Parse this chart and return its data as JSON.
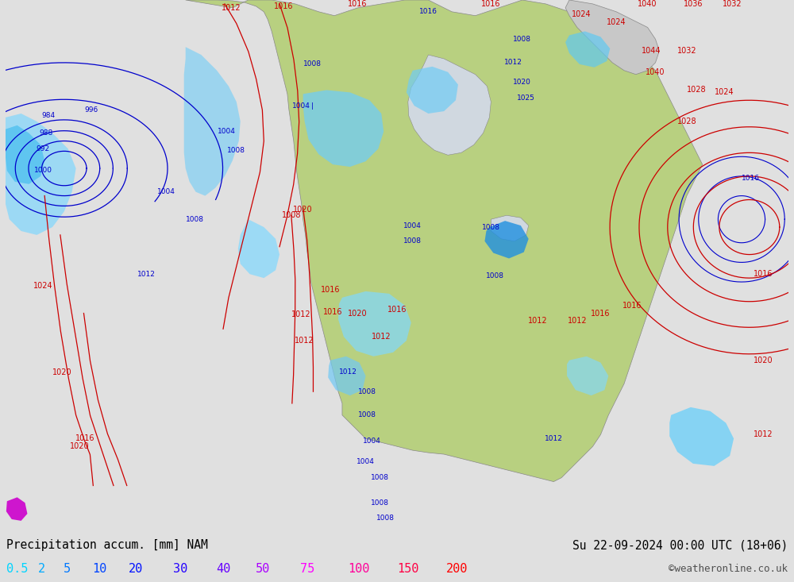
{
  "title_left": "Precipitation accum. [mm] NAM",
  "title_right": "Su 22-09-2024 00:00 UTC (18+06)",
  "watermark": "©weatheronline.co.uk",
  "legend_values": [
    "0.5",
    "2",
    "5",
    "10",
    "20",
    "30",
    "40",
    "50",
    "75",
    "100",
    "150",
    "200"
  ],
  "legend_colors": [
    "#00d4ff",
    "#00aaff",
    "#0077ff",
    "#0044ff",
    "#0011ff",
    "#2200ff",
    "#6600ff",
    "#aa00ff",
    "#ff00ff",
    "#ff0099",
    "#ff0044",
    "#ff0000"
  ],
  "bg_color": "#e0e0e0",
  "bottom_bar_color": "#e8e8e8",
  "figsize": [
    10.0,
    7.33
  ],
  "dpi": 100,
  "map_ocean_color": "#d0d8e0",
  "map_land_color": "#c8d89a",
  "map_green_color": "#b8d080",
  "prec_light_color": "#a0e8ff",
  "prec_medium_color": "#60c8f0",
  "prec_deep_color": "#20a0e0",
  "blue_isobar_color": "#0000cc",
  "red_isobar_color": "#cc0000"
}
